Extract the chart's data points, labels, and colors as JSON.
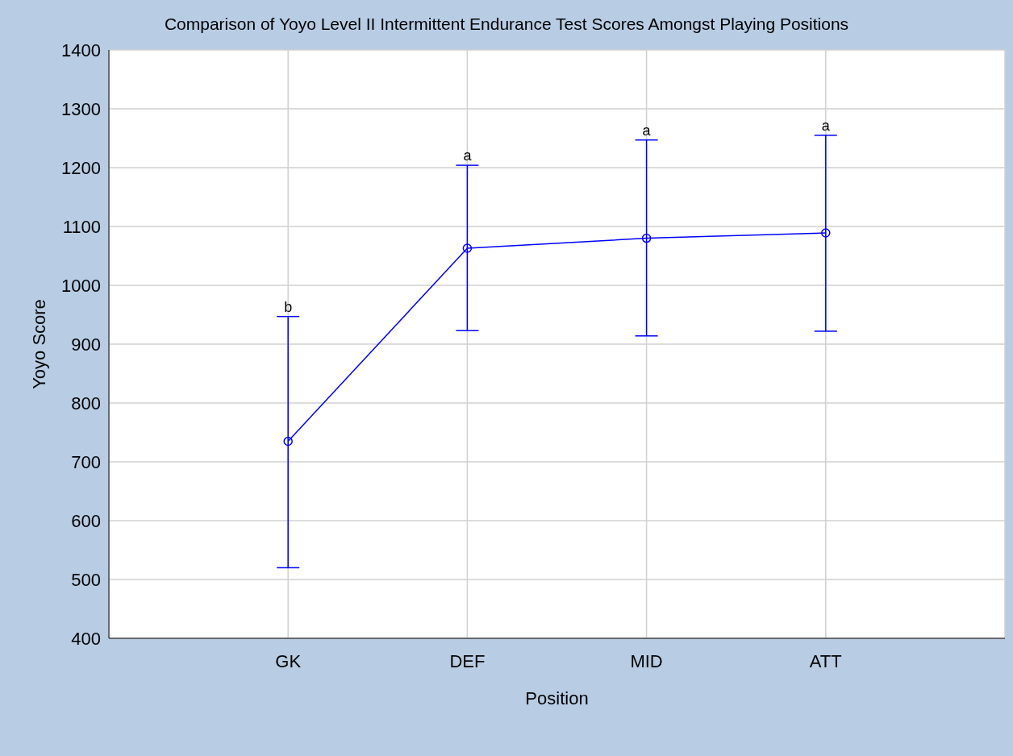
{
  "chart_data": {
    "type": "line",
    "title": "Comparison of Yoyo Level II Intermittent Endurance Test Scores Amongst Playing Positions",
    "xlabel": "Position",
    "ylabel": "Yoyo Score",
    "categories": [
      "GK",
      "DEF",
      "MID",
      "ATT"
    ],
    "series": [
      {
        "color": "#0000ff",
        "values": [
          735,
          1063,
          1080,
          1089
        ],
        "errors": [
          [
            520,
            947
          ],
          [
            923,
            1204
          ],
          [
            914,
            1247
          ],
          [
            922,
            1255
          ]
        ]
      }
    ],
    "ylim": [
      400,
      1400
    ],
    "yticks": [
      400,
      500,
      600,
      700,
      800,
      900,
      1000,
      1100,
      1200,
      1300,
      1400
    ],
    "grid": true,
    "marker": "circle",
    "line_style": "solid",
    "annotations": [
      {
        "text": "b",
        "x": "GK",
        "y": 947
      },
      {
        "text": "a",
        "x": "DEF",
        "y": 1204
      },
      {
        "text": "a",
        "x": "MID",
        "y": 1247
      },
      {
        "text": "a",
        "x": "ATT",
        "y": 1255
      }
    ]
  }
}
